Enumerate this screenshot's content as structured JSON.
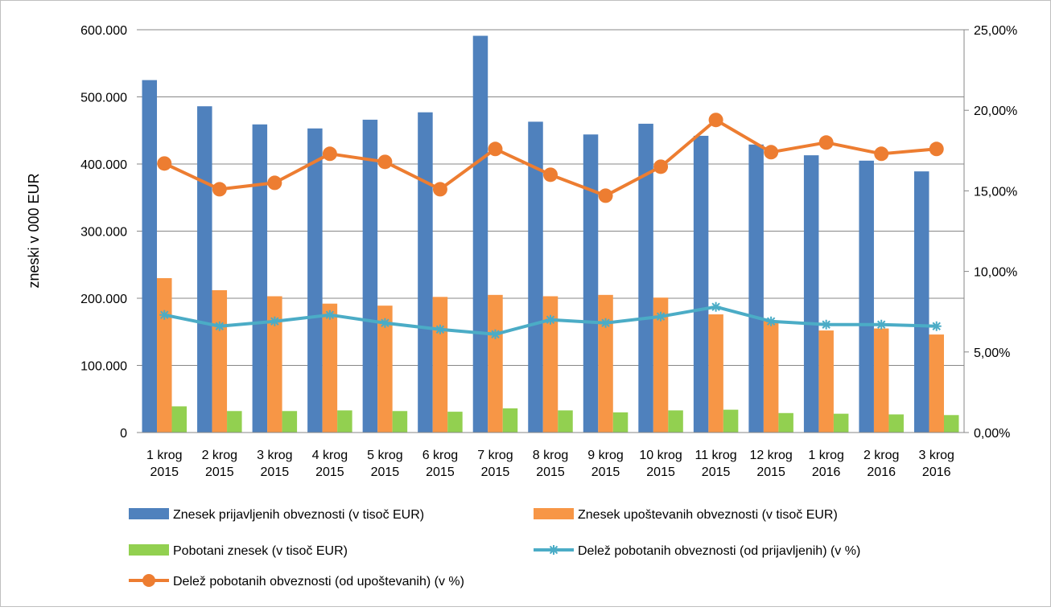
{
  "chart_data": {
    "type": "bar",
    "categories": [
      [
        "1 krog",
        "2015"
      ],
      [
        "2 krog",
        "2015"
      ],
      [
        "3 krog",
        "2015"
      ],
      [
        "4 krog",
        "2015"
      ],
      [
        "5 krog",
        "2015"
      ],
      [
        "6 krog",
        "2015"
      ],
      [
        "7 krog",
        "2015"
      ],
      [
        "8 krog",
        "2015"
      ],
      [
        "9 krog",
        "2015"
      ],
      [
        "10 krog",
        "2015"
      ],
      [
        "11 krog",
        "2015"
      ],
      [
        "12 krog",
        "2015"
      ],
      [
        "1 krog",
        "2016"
      ],
      [
        "2 krog",
        "2016"
      ],
      [
        "3 krog",
        "2016"
      ]
    ],
    "ylabel": "zneski v 000 EUR",
    "y_left": {
      "min": 0,
      "max": 600000,
      "ticks": [
        "0",
        "100.000",
        "200.000",
        "300.000",
        "400.000",
        "500.000",
        "600.000"
      ]
    },
    "y_right": {
      "min": 0,
      "max": 25,
      "ticks": [
        "0,00%",
        "5,00%",
        "10,00%",
        "15,00%",
        "20,00%",
        "25,00%"
      ]
    },
    "grid": true,
    "legend_position": "bottom",
    "bar_series": [
      {
        "name": "Znesek prijavljenih obveznosti  (v tisoč EUR)",
        "color": "#4f81bd",
        "values": [
          525000,
          486000,
          459000,
          453000,
          466000,
          477000,
          591000,
          463000,
          444000,
          460000,
          442000,
          429000,
          413000,
          405000,
          389000
        ]
      },
      {
        "name": "Znesek upoštevanih obveznosti  (v tisoč EUR)",
        "color": "#f79646",
        "values": [
          230000,
          212000,
          203000,
          192000,
          189000,
          202000,
          205000,
          203000,
          205000,
          201000,
          176000,
          166000,
          152000,
          155000,
          146000
        ]
      },
      {
        "name": "Pobotani znesek  (v tisoč EUR)",
        "color": "#92d050",
        "values": [
          39000,
          32000,
          32000,
          33000,
          32000,
          31000,
          36000,
          33000,
          30000,
          33000,
          34000,
          29000,
          28000,
          27000,
          26000
        ]
      }
    ],
    "line_series": [
      {
        "name": "Delež pobotanih obveznosti (od prijavljenih) (v %)",
        "color": "#4bacc6",
        "marker": "asterisk",
        "values": [
          7.3,
          6.6,
          6.9,
          7.3,
          6.8,
          6.4,
          6.1,
          7.0,
          6.8,
          7.2,
          7.8,
          6.9,
          6.7,
          6.7,
          6.6
        ]
      },
      {
        "name": "Delež pobotanih obveznosti (od upoštevanih) (v %)",
        "color": "#ed7d31",
        "marker": "circle",
        "values": [
          16.7,
          15.1,
          15.5,
          17.3,
          16.8,
          15.1,
          17.6,
          16.0,
          14.7,
          16.5,
          19.4,
          17.4,
          18.0,
          17.3,
          17.6
        ]
      }
    ]
  }
}
